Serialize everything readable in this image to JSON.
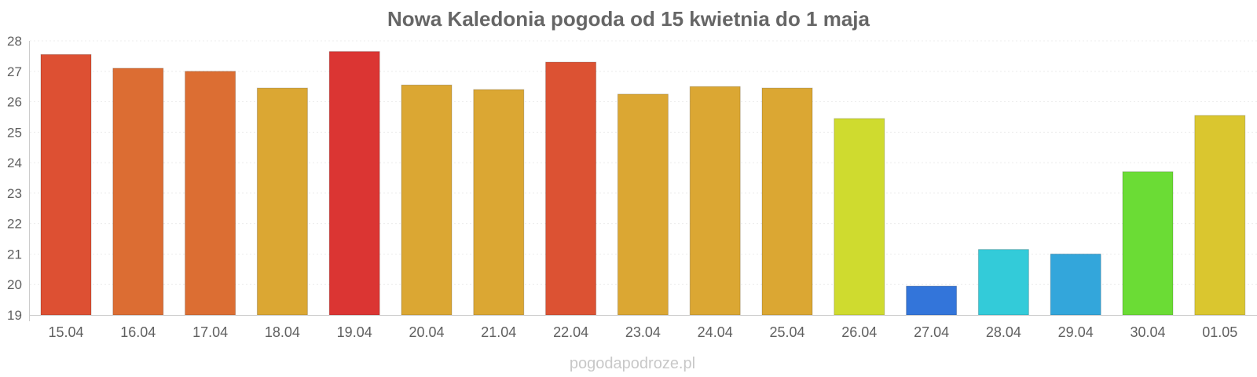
{
  "chart_data": {
    "type": "bar",
    "title": "Nowa Kaledonia pogoda od 15 kwietnia do 1 maja",
    "xlabel": "",
    "ylabel": "",
    "ylim": [
      19,
      28
    ],
    "yticks": [
      "19",
      "20",
      "21",
      "22",
      "23",
      "24",
      "25",
      "26",
      "27",
      "28"
    ],
    "grid": true,
    "legend": "none",
    "categories": [
      "15.04",
      "16.04",
      "17.04",
      "18.04",
      "19.04",
      "20.04",
      "21.04",
      "22.04",
      "23.04",
      "24.04",
      "25.04",
      "26.04",
      "27.04",
      "28.04",
      "29.04",
      "30.04",
      "01.05"
    ],
    "values": [
      27.55,
      27.1,
      27.0,
      26.45,
      27.65,
      26.55,
      26.4,
      27.3,
      26.25,
      26.5,
      26.45,
      25.45,
      19.95,
      21.15,
      21.0,
      23.7,
      25.55
    ],
    "colors": [
      "#dd5033",
      "#dc6d33",
      "#dc6e33",
      "#dba733",
      "#db3533",
      "#dba733",
      "#dba733",
      "#dc5233",
      "#dba733",
      "#dba733",
      "#dba733",
      "#cfdb2f",
      "#3375da",
      "#33cbd9",
      "#33a6db",
      "#6bdc35",
      "#dac62f"
    ]
  },
  "watermark": "pogodapodroze.pl"
}
